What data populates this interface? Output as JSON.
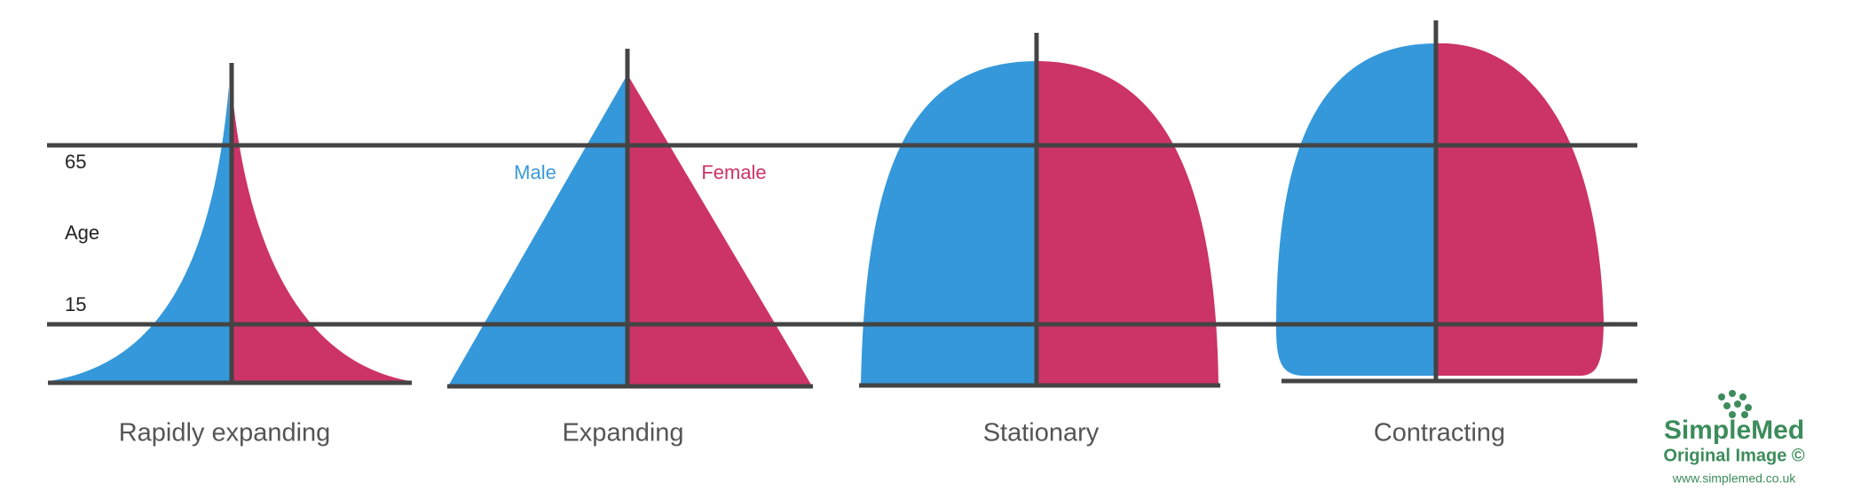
{
  "axis": {
    "labels": [
      "65",
      "Age",
      "15"
    ]
  },
  "legend": {
    "male": "Male",
    "female": "Female"
  },
  "pyramids": [
    {
      "label": "Rapidly expanding"
    },
    {
      "label": "Expanding"
    },
    {
      "label": "Stationary"
    },
    {
      "label": "Contracting"
    }
  ],
  "watermark": {
    "brand": "SimpleMed",
    "note": "Original Image ©",
    "url": "www.simplemed.co.uk"
  }
}
